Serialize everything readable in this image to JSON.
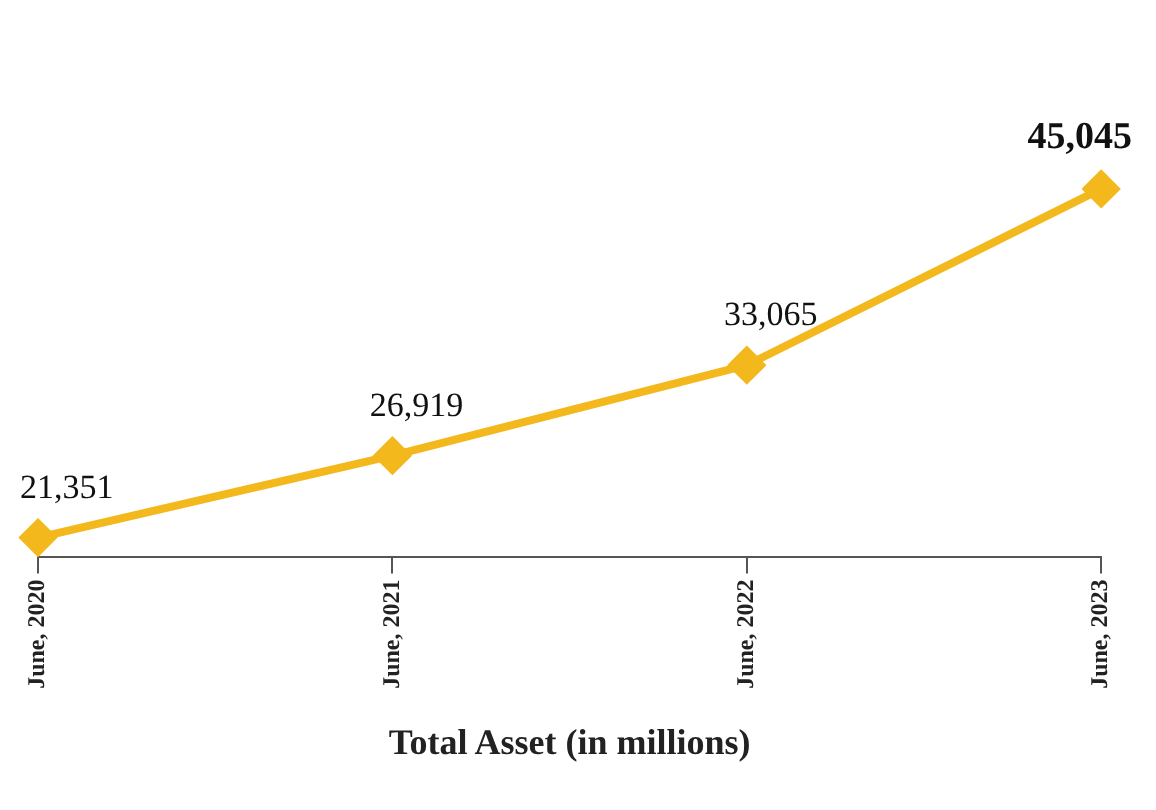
{
  "chart_data": {
    "type": "line",
    "xlabel": "Total Asset (in millions)",
    "categories": [
      "June, 2020",
      "June, 2021",
      "June, 2022",
      "June, 2023"
    ],
    "values": [
      21351,
      26919,
      33065,
      45045
    ],
    "value_labels": [
      "21,351",
      "26,919",
      "33,065",
      "45,045"
    ],
    "color": "#f2b81c",
    "marker": "diamond",
    "grid": false,
    "legend": false
  }
}
